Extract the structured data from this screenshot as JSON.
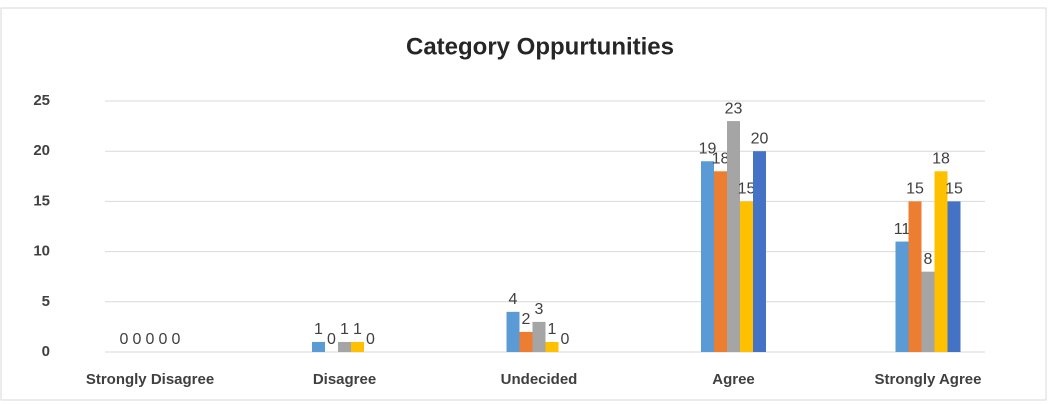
{
  "chart_data": {
    "type": "bar",
    "title": "Category  Oppurtunities",
    "categories": [
      "Strongly Disagree",
      "Disagree",
      "Undecided",
      "Agree",
      "Strongly Agree"
    ],
    "series": [
      {
        "color": "#5b9bd5",
        "values": [
          0,
          1,
          4,
          19,
          11
        ]
      },
      {
        "color": "#ed7d31",
        "values": [
          0,
          0,
          2,
          18,
          15
        ]
      },
      {
        "color": "#a5a5a5",
        "values": [
          0,
          1,
          3,
          23,
          8
        ]
      },
      {
        "color": "#ffc000",
        "values": [
          0,
          1,
          1,
          15,
          18
        ]
      },
      {
        "color": "#4472c4",
        "values": [
          0,
          0,
          0,
          20,
          15
        ]
      }
    ],
    "ylim": [
      0,
      25
    ],
    "yticks": [
      0,
      5,
      10,
      15,
      20,
      25
    ],
    "grid": true
  }
}
